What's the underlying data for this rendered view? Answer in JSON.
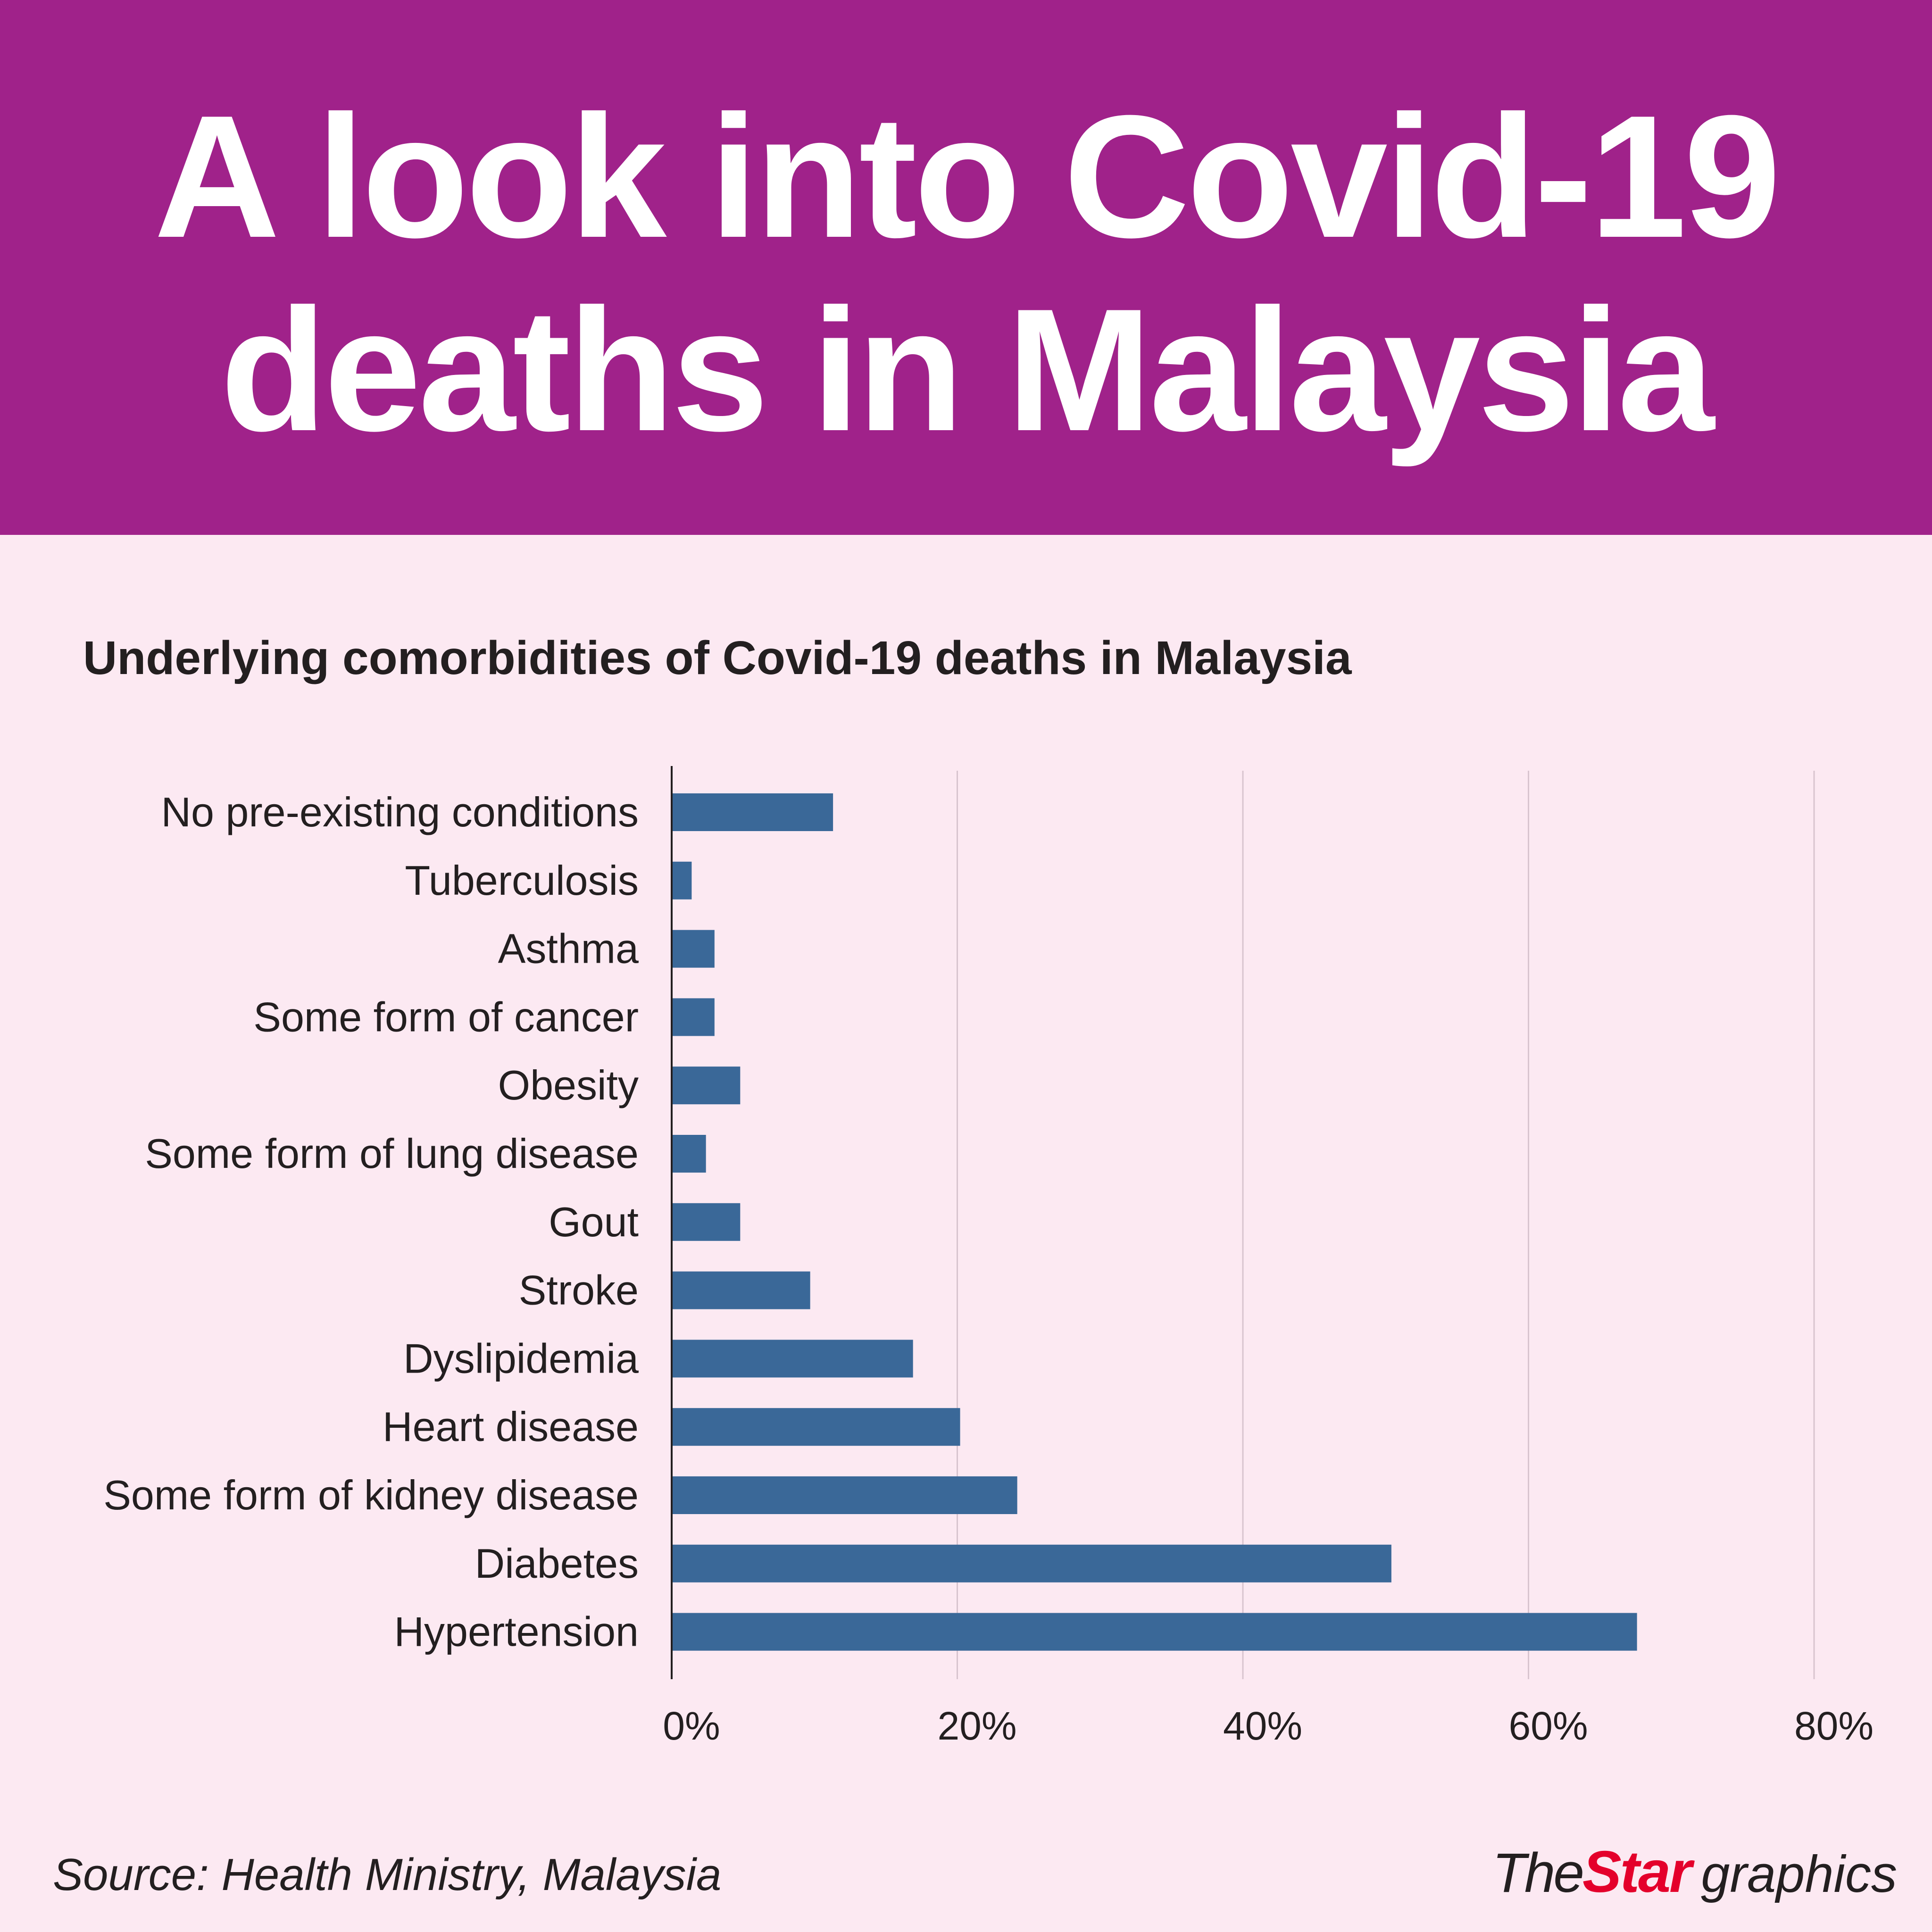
{
  "header": {
    "title": "A look into Covid-19 deaths in Malaysia"
  },
  "colors": {
    "header_bg": "#a0228a",
    "page_bg": "#fce9f2",
    "bar": "#3a6898",
    "brand_red": "#e4002b"
  },
  "chart_data": {
    "type": "bar",
    "orientation": "horizontal",
    "title": "Underlying comorbidities of Covid-19 deaths in Malaysia",
    "categories": [
      "No pre-existing conditions",
      "Tuberculosis",
      "Asthma",
      "Some form of cancer",
      "Obesity",
      "Some form of lung disease",
      "Gout",
      "Stroke",
      "Dyslipidemia",
      "Heart disease",
      "Some form of kidney disease",
      "Diabetes",
      "Hypertension"
    ],
    "values": [
      11.3,
      1.4,
      3.0,
      3.0,
      4.8,
      2.4,
      4.8,
      9.7,
      16.9,
      20.2,
      24.2,
      50.4,
      67.6
    ],
    "xlim": [
      0,
      80
    ],
    "xticks": [
      0,
      20,
      40,
      60,
      80
    ],
    "xtick_labels": [
      "0%",
      "20%",
      "40%",
      "60%",
      "80%"
    ],
    "xlabel": "",
    "ylabel": "",
    "grid": "vertical"
  },
  "footer": {
    "source": "Source: Health Ministry, Malaysia",
    "brand_the": "The",
    "brand_star": "Star",
    "brand_graphics": "graphics"
  }
}
